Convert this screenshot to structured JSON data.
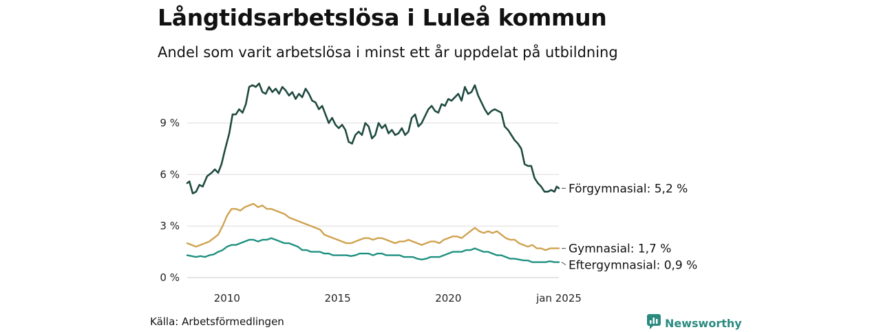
{
  "header": {
    "title": "Långtidsarbetslösa i Luleå kommun",
    "subtitle": "Andel som varit arbetslösa i minst ett år uppdelat på utbildning"
  },
  "footer": {
    "source": "Källa: Arbetsförmedlingen",
    "brand": "Newsworthy"
  },
  "chart_data": {
    "type": "line",
    "title": "Långtidsarbetslösa i Luleå kommun",
    "subtitle": "Andel som varit arbetslösa i minst ett år uppdelat på utbildning",
    "xlabel": "",
    "ylabel": "",
    "xlim": [
      2008.2,
      2025.0
    ],
    "ylim": [
      0,
      11.5
    ],
    "grid": true,
    "x_ticks": [
      {
        "value": 2010,
        "label": "2010"
      },
      {
        "value": 2015,
        "label": "2015"
      },
      {
        "value": 2020,
        "label": "2020"
      },
      {
        "value": 2025,
        "label": "jan 2025"
      }
    ],
    "y_ticks": [
      {
        "value": 0,
        "label": "0 %"
      },
      {
        "value": 3,
        "label": "3 %"
      },
      {
        "value": 6,
        "label": "6 %"
      },
      {
        "value": 9,
        "label": "9 %"
      }
    ],
    "series": [
      {
        "name": "Förgymnasial",
        "end_label": "Förgymnasial: 5,2 %",
        "color": "#1f4a40",
        "points": [
          [
            2008.2,
            5.5
          ],
          [
            2008.3,
            5.6
          ],
          [
            2008.45,
            4.9
          ],
          [
            2008.6,
            5.0
          ],
          [
            2008.75,
            5.4
          ],
          [
            2008.9,
            5.3
          ],
          [
            2009.1,
            5.9
          ],
          [
            2009.3,
            6.1
          ],
          [
            2009.45,
            6.3
          ],
          [
            2009.6,
            6.1
          ],
          [
            2009.75,
            6.6
          ],
          [
            2009.9,
            7.4
          ],
          [
            2010.1,
            8.4
          ],
          [
            2010.25,
            9.5
          ],
          [
            2010.4,
            9.5
          ],
          [
            2010.55,
            9.8
          ],
          [
            2010.7,
            9.6
          ],
          [
            2010.85,
            10.1
          ],
          [
            2011.0,
            11.1
          ],
          [
            2011.15,
            11.2
          ],
          [
            2011.3,
            11.1
          ],
          [
            2011.45,
            11.3
          ],
          [
            2011.6,
            10.8
          ],
          [
            2011.75,
            10.7
          ],
          [
            2011.9,
            11.1
          ],
          [
            2012.05,
            10.8
          ],
          [
            2012.2,
            11.0
          ],
          [
            2012.35,
            10.7
          ],
          [
            2012.5,
            11.1
          ],
          [
            2012.65,
            10.9
          ],
          [
            2012.8,
            10.6
          ],
          [
            2012.95,
            10.8
          ],
          [
            2013.1,
            10.4
          ],
          [
            2013.25,
            10.7
          ],
          [
            2013.4,
            10.5
          ],
          [
            2013.55,
            11.0
          ],
          [
            2013.7,
            10.7
          ],
          [
            2013.85,
            10.3
          ],
          [
            2014.0,
            10.2
          ],
          [
            2014.15,
            9.8
          ],
          [
            2014.3,
            10.0
          ],
          [
            2014.45,
            9.5
          ],
          [
            2014.6,
            9.0
          ],
          [
            2014.75,
            9.3
          ],
          [
            2014.9,
            8.9
          ],
          [
            2015.05,
            8.7
          ],
          [
            2015.2,
            8.9
          ],
          [
            2015.35,
            8.6
          ],
          [
            2015.5,
            7.9
          ],
          [
            2015.65,
            7.8
          ],
          [
            2015.8,
            8.3
          ],
          [
            2015.95,
            8.5
          ],
          [
            2016.1,
            8.3
          ],
          [
            2016.25,
            9.0
          ],
          [
            2016.4,
            8.8
          ],
          [
            2016.55,
            8.1
          ],
          [
            2016.7,
            8.3
          ],
          [
            2016.85,
            9.0
          ],
          [
            2017.0,
            8.7
          ],
          [
            2017.15,
            8.9
          ],
          [
            2017.3,
            8.4
          ],
          [
            2017.45,
            8.6
          ],
          [
            2017.6,
            8.3
          ],
          [
            2017.75,
            8.4
          ],
          [
            2017.9,
            8.7
          ],
          [
            2018.05,
            8.3
          ],
          [
            2018.2,
            8.5
          ],
          [
            2018.35,
            9.3
          ],
          [
            2018.5,
            9.5
          ],
          [
            2018.65,
            8.8
          ],
          [
            2018.8,
            9.0
          ],
          [
            2018.95,
            9.4
          ],
          [
            2019.1,
            9.8
          ],
          [
            2019.25,
            10.0
          ],
          [
            2019.4,
            9.7
          ],
          [
            2019.55,
            9.6
          ],
          [
            2019.7,
            10.1
          ],
          [
            2019.85,
            10.0
          ],
          [
            2020.0,
            10.4
          ],
          [
            2020.15,
            10.3
          ],
          [
            2020.3,
            10.5
          ],
          [
            2020.45,
            10.7
          ],
          [
            2020.6,
            10.3
          ],
          [
            2020.75,
            11.1
          ],
          [
            2020.9,
            10.7
          ],
          [
            2021.05,
            10.8
          ],
          [
            2021.2,
            11.2
          ],
          [
            2021.35,
            10.6
          ],
          [
            2021.5,
            10.2
          ],
          [
            2021.65,
            9.8
          ],
          [
            2021.8,
            9.5
          ],
          [
            2021.95,
            9.7
          ],
          [
            2022.1,
            9.8
          ],
          [
            2022.25,
            9.7
          ],
          [
            2022.4,
            9.6
          ],
          [
            2022.55,
            8.8
          ],
          [
            2022.7,
            8.6
          ],
          [
            2022.85,
            8.3
          ],
          [
            2023.0,
            8.0
          ],
          [
            2023.15,
            7.8
          ],
          [
            2023.3,
            7.5
          ],
          [
            2023.45,
            6.6
          ],
          [
            2023.6,
            6.5
          ],
          [
            2023.75,
            6.5
          ],
          [
            2023.9,
            5.8
          ],
          [
            2024.05,
            5.5
          ],
          [
            2024.2,
            5.3
          ],
          [
            2024.35,
            5.0
          ],
          [
            2024.5,
            5.0
          ],
          [
            2024.65,
            5.1
          ],
          [
            2024.8,
            5.0
          ],
          [
            2024.9,
            5.3
          ],
          [
            2025.0,
            5.2
          ]
        ]
      },
      {
        "name": "Gymnasial",
        "end_label": "Gymnasial: 1,7 %",
        "color": "#cfa24e",
        "points": [
          [
            2008.2,
            2.0
          ],
          [
            2008.4,
            1.9
          ],
          [
            2008.6,
            1.8
          ],
          [
            2008.8,
            1.9
          ],
          [
            2009.0,
            2.0
          ],
          [
            2009.2,
            2.1
          ],
          [
            2009.4,
            2.3
          ],
          [
            2009.6,
            2.5
          ],
          [
            2009.8,
            3.0
          ],
          [
            2010.0,
            3.6
          ],
          [
            2010.2,
            4.0
          ],
          [
            2010.4,
            4.0
          ],
          [
            2010.6,
            3.9
          ],
          [
            2010.8,
            4.1
          ],
          [
            2011.0,
            4.2
          ],
          [
            2011.2,
            4.3
          ],
          [
            2011.4,
            4.1
          ],
          [
            2011.6,
            4.2
          ],
          [
            2011.8,
            4.0
          ],
          [
            2012.0,
            4.0
          ],
          [
            2012.2,
            3.9
          ],
          [
            2012.4,
            3.8
          ],
          [
            2012.6,
            3.7
          ],
          [
            2012.8,
            3.5
          ],
          [
            2013.0,
            3.4
          ],
          [
            2013.2,
            3.3
          ],
          [
            2013.4,
            3.2
          ],
          [
            2013.6,
            3.1
          ],
          [
            2013.8,
            3.0
          ],
          [
            2014.0,
            2.9
          ],
          [
            2014.2,
            2.8
          ],
          [
            2014.4,
            2.5
          ],
          [
            2014.6,
            2.4
          ],
          [
            2014.8,
            2.3
          ],
          [
            2015.0,
            2.2
          ],
          [
            2015.2,
            2.1
          ],
          [
            2015.4,
            2.0
          ],
          [
            2015.6,
            2.0
          ],
          [
            2015.8,
            2.1
          ],
          [
            2016.0,
            2.2
          ],
          [
            2016.2,
            2.3
          ],
          [
            2016.4,
            2.3
          ],
          [
            2016.6,
            2.2
          ],
          [
            2016.8,
            2.3
          ],
          [
            2017.0,
            2.3
          ],
          [
            2017.2,
            2.2
          ],
          [
            2017.4,
            2.1
          ],
          [
            2017.6,
            2.0
          ],
          [
            2017.8,
            2.1
          ],
          [
            2018.0,
            2.1
          ],
          [
            2018.2,
            2.2
          ],
          [
            2018.4,
            2.1
          ],
          [
            2018.6,
            2.0
          ],
          [
            2018.8,
            1.9
          ],
          [
            2019.0,
            2.0
          ],
          [
            2019.2,
            2.1
          ],
          [
            2019.4,
            2.1
          ],
          [
            2019.6,
            2.0
          ],
          [
            2019.8,
            2.2
          ],
          [
            2020.0,
            2.3
          ],
          [
            2020.2,
            2.4
          ],
          [
            2020.4,
            2.4
          ],
          [
            2020.6,
            2.3
          ],
          [
            2020.8,
            2.5
          ],
          [
            2021.0,
            2.7
          ],
          [
            2021.2,
            2.9
          ],
          [
            2021.4,
            2.7
          ],
          [
            2021.6,
            2.6
          ],
          [
            2021.8,
            2.7
          ],
          [
            2022.0,
            2.6
          ],
          [
            2022.2,
            2.7
          ],
          [
            2022.4,
            2.5
          ],
          [
            2022.6,
            2.3
          ],
          [
            2022.8,
            2.2
          ],
          [
            2023.0,
            2.2
          ],
          [
            2023.2,
            2.0
          ],
          [
            2023.4,
            1.9
          ],
          [
            2023.6,
            1.8
          ],
          [
            2023.8,
            1.9
          ],
          [
            2024.0,
            1.7
          ],
          [
            2024.2,
            1.7
          ],
          [
            2024.4,
            1.6
          ],
          [
            2024.6,
            1.7
          ],
          [
            2024.8,
            1.7
          ],
          [
            2025.0,
            1.7
          ]
        ]
      },
      {
        "name": "Eftergymnasial",
        "end_label": "Eftergymnasial: 0,9 %",
        "color": "#1e9080",
        "points": [
          [
            2008.2,
            1.3
          ],
          [
            2008.4,
            1.25
          ],
          [
            2008.6,
            1.2
          ],
          [
            2008.8,
            1.25
          ],
          [
            2009.0,
            1.2
          ],
          [
            2009.2,
            1.3
          ],
          [
            2009.4,
            1.35
          ],
          [
            2009.6,
            1.5
          ],
          [
            2009.8,
            1.6
          ],
          [
            2010.0,
            1.8
          ],
          [
            2010.2,
            1.9
          ],
          [
            2010.4,
            1.9
          ],
          [
            2010.6,
            2.0
          ],
          [
            2010.8,
            2.1
          ],
          [
            2011.0,
            2.2
          ],
          [
            2011.2,
            2.2
          ],
          [
            2011.4,
            2.1
          ],
          [
            2011.6,
            2.2
          ],
          [
            2011.8,
            2.2
          ],
          [
            2012.0,
            2.3
          ],
          [
            2012.2,
            2.2
          ],
          [
            2012.4,
            2.1
          ],
          [
            2012.6,
            2.0
          ],
          [
            2012.8,
            2.0
          ],
          [
            2013.0,
            1.9
          ],
          [
            2013.2,
            1.8
          ],
          [
            2013.4,
            1.6
          ],
          [
            2013.6,
            1.6
          ],
          [
            2013.8,
            1.5
          ],
          [
            2014.0,
            1.5
          ],
          [
            2014.2,
            1.5
          ],
          [
            2014.4,
            1.4
          ],
          [
            2014.6,
            1.4
          ],
          [
            2014.8,
            1.3
          ],
          [
            2015.0,
            1.3
          ],
          [
            2015.2,
            1.3
          ],
          [
            2015.4,
            1.3
          ],
          [
            2015.6,
            1.25
          ],
          [
            2015.8,
            1.3
          ],
          [
            2016.0,
            1.4
          ],
          [
            2016.2,
            1.4
          ],
          [
            2016.4,
            1.4
          ],
          [
            2016.6,
            1.3
          ],
          [
            2016.8,
            1.4
          ],
          [
            2017.0,
            1.4
          ],
          [
            2017.2,
            1.3
          ],
          [
            2017.4,
            1.3
          ],
          [
            2017.6,
            1.3
          ],
          [
            2017.8,
            1.3
          ],
          [
            2018.0,
            1.2
          ],
          [
            2018.2,
            1.2
          ],
          [
            2018.4,
            1.2
          ],
          [
            2018.6,
            1.1
          ],
          [
            2018.8,
            1.05
          ],
          [
            2019.0,
            1.1
          ],
          [
            2019.2,
            1.2
          ],
          [
            2019.4,
            1.2
          ],
          [
            2019.6,
            1.2
          ],
          [
            2019.8,
            1.3
          ],
          [
            2020.0,
            1.4
          ],
          [
            2020.2,
            1.5
          ],
          [
            2020.4,
            1.5
          ],
          [
            2020.6,
            1.5
          ],
          [
            2020.8,
            1.6
          ],
          [
            2021.0,
            1.6
          ],
          [
            2021.2,
            1.7
          ],
          [
            2021.4,
            1.6
          ],
          [
            2021.6,
            1.5
          ],
          [
            2021.8,
            1.5
          ],
          [
            2022.0,
            1.4
          ],
          [
            2022.2,
            1.3
          ],
          [
            2022.4,
            1.3
          ],
          [
            2022.6,
            1.2
          ],
          [
            2022.8,
            1.1
          ],
          [
            2023.0,
            1.1
          ],
          [
            2023.2,
            1.05
          ],
          [
            2023.4,
            1.0
          ],
          [
            2023.6,
            1.0
          ],
          [
            2023.8,
            0.9
          ],
          [
            2024.0,
            0.9
          ],
          [
            2024.2,
            0.9
          ],
          [
            2024.4,
            0.9
          ],
          [
            2024.6,
            0.95
          ],
          [
            2024.8,
            0.9
          ],
          [
            2025.0,
            0.9
          ]
        ]
      }
    ]
  }
}
